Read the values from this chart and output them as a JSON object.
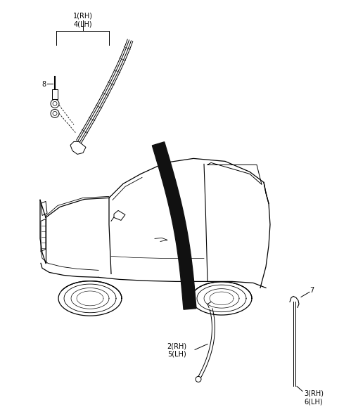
{
  "bg_color": "#ffffff",
  "line_color": "#000000",
  "dark_strip_color": "#111111",
  "label_1_4": "1(RH)\n4(LH)",
  "label_2_5": "2(RH)\n5(LH)",
  "label_3_6": "3(RH)\n6(LH)",
  "label_7": "7",
  "label_8": "8",
  "label_fontsize": 7.0,
  "fig_width": 4.8,
  "fig_height": 5.63
}
